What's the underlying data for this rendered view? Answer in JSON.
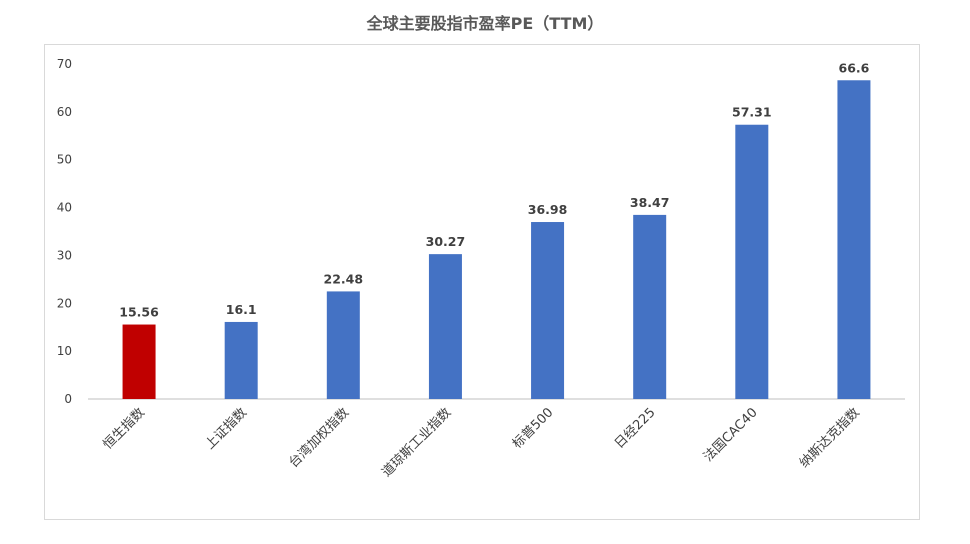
{
  "chart_data": {
    "type": "bar",
    "title": "全球主要股指市盈率PE（TTM）",
    "categories": [
      "恒生指数",
      "上证指数",
      "台湾加权指数",
      "道琼斯工业指数",
      "标普500",
      "日经225",
      "法国CAC40",
      "纳斯达克指数"
    ],
    "values": [
      15.56,
      16.1,
      22.48,
      30.27,
      36.98,
      38.47,
      57.31,
      66.6
    ],
    "value_labels": [
      "15.56",
      "16.1",
      "22.48",
      "30.27",
      "36.98",
      "38.47",
      "57.31",
      "66.6"
    ],
    "yticks": [
      "0",
      "10",
      "20",
      "30",
      "40",
      "50",
      "60",
      "70"
    ],
    "ylim": [
      0,
      70
    ],
    "grid": false,
    "legend": "none",
    "colors": {
      "default": "#4472C4",
      "highlight": "#C00000",
      "highlight_index": 0,
      "axis": "#BFBFBF"
    }
  }
}
